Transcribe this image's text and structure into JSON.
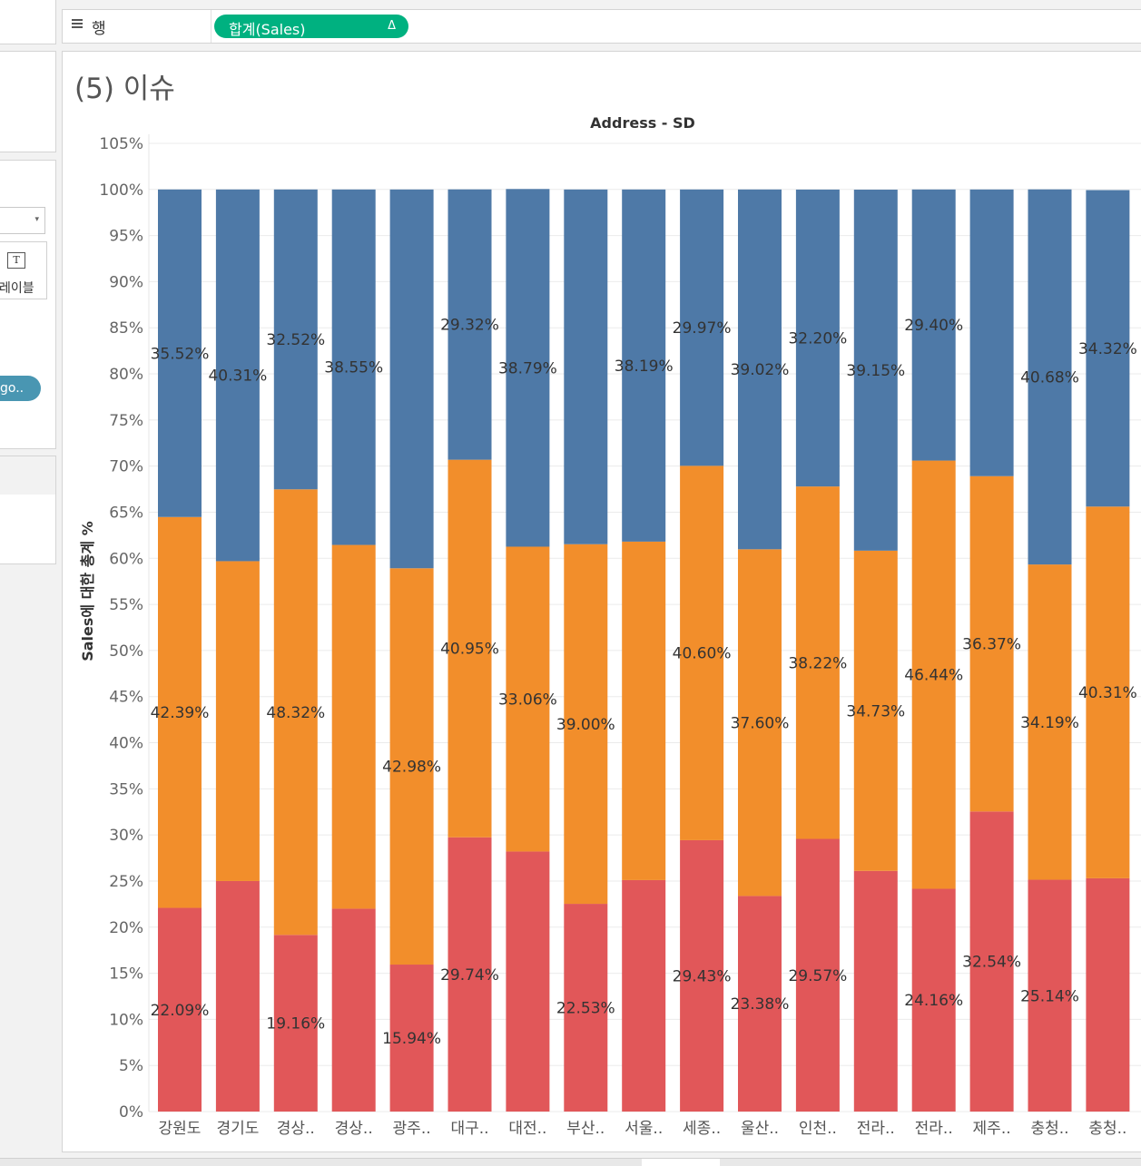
{
  "shelf": {
    "label": "행",
    "pill": {
      "text": "합계(Sales)",
      "delta": "Δ"
    }
  },
  "left_panel": {
    "label_card": "레이블",
    "pill_text": "go.."
  },
  "sheet": {
    "title": "(5) 이슈"
  },
  "colors": {
    "blue": "#4e79a7",
    "orange": "#f28e2b",
    "red": "#e15759",
    "pill": "#00b180",
    "dim_pill": "#4996b2"
  },
  "chart_data": {
    "type": "bar",
    "stacked": true,
    "title": "Address - SD",
    "ylabel": "Sales에 대한 총계 %",
    "xlabel": "",
    "ylim": [
      0,
      105
    ],
    "yticks": [
      "0%",
      "5%",
      "10%",
      "15%",
      "20%",
      "25%",
      "30%",
      "35%",
      "40%",
      "45%",
      "50%",
      "55%",
      "60%",
      "65%",
      "70%",
      "75%",
      "80%",
      "85%",
      "90%",
      "95%",
      "100%",
      "105%"
    ],
    "categories": [
      "강원도",
      "경기도",
      "경상..",
      "경상..",
      "광주..",
      "대구..",
      "대전..",
      "부산..",
      "서울..",
      "세종..",
      "울산..",
      "인천..",
      "전라..",
      "전라..",
      "제주..",
      "충청..",
      "충청.."
    ],
    "series": [
      {
        "color": "#e15759",
        "values": [
          22.09,
          25.0,
          19.16,
          22.0,
          15.94,
          29.74,
          28.2,
          22.53,
          25.1,
          29.43,
          23.38,
          29.57,
          26.1,
          24.16,
          32.54,
          25.14,
          25.3
        ],
        "labels": [
          "22.09%",
          "",
          "19.16%",
          "",
          "15.94%",
          "29.74%",
          "",
          "22.53%",
          "",
          "29.43%",
          "23.38%",
          "29.57%",
          "",
          "24.16%",
          "32.54%",
          "25.14%",
          ""
        ]
      },
      {
        "color": "#f28e2b",
        "values": [
          42.39,
          34.69,
          48.32,
          39.45,
          42.98,
          40.95,
          33.06,
          39.0,
          36.71,
          40.6,
          37.6,
          38.22,
          34.73,
          46.44,
          36.37,
          34.19,
          40.31
        ],
        "labels": [
          "42.39%",
          "",
          "48.32%",
          "",
          "42.98%",
          "40.95%",
          "33.06%",
          "39.00%",
          "",
          "40.60%",
          "37.60%",
          "38.22%",
          "34.73%",
          "46.44%",
          "36.37%",
          "34.19%",
          "40.31%"
        ]
      },
      {
        "color": "#4e79a7",
        "values": [
          35.52,
          40.31,
          32.52,
          38.55,
          41.08,
          29.32,
          38.79,
          38.47,
          38.19,
          29.97,
          39.02,
          32.2,
          39.15,
          29.4,
          31.09,
          40.68,
          34.32
        ],
        "labels": [
          "35.52%",
          "40.31%",
          "32.52%",
          "38.55%",
          "",
          "29.32%",
          "38.79%",
          "",
          "38.19%",
          "29.97%",
          "39.02%",
          "32.20%",
          "39.15%",
          "29.40%",
          "",
          "40.68%",
          "34.32%"
        ]
      }
    ],
    "grid": true
  }
}
